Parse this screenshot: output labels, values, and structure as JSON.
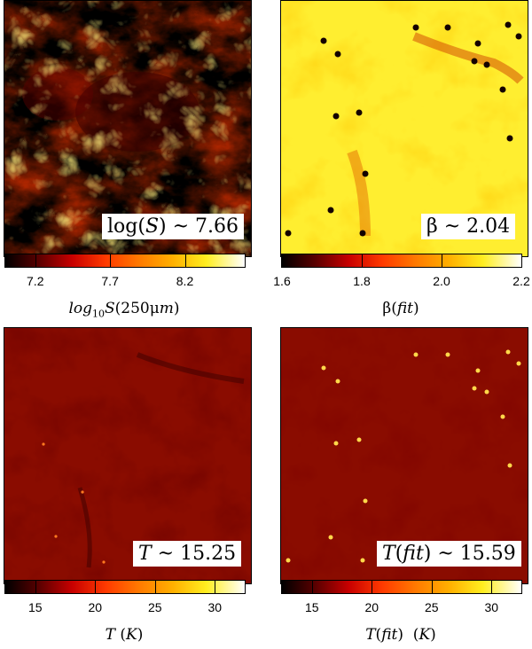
{
  "panels": {
    "top_left": {
      "annotation_text": "log(S) ~ 7.66",
      "annot_prefix": "log(",
      "annot_var": "S",
      "annot_suffix": ") ~ 7.66"
    },
    "top_right": {
      "annotation_text": "β ~ 2.04",
      "annot_var": "β",
      "annot_suffix": " ~ 2.04"
    },
    "bottom_left": {
      "annotation_text": "T ~ 15.25",
      "annot_var": "T",
      "annot_suffix": " ~ 15.25"
    },
    "bottom_right": {
      "annotation_text": "T(fit) ~ 15.59",
      "annot_var": "T",
      "annot_fit": "(fit)",
      "annot_suffix": " ~ 15.59"
    }
  },
  "colorbars": {
    "logS": {
      "ticks": [
        "7.2",
        "7.7",
        "8.2"
      ],
      "range": [
        7.0,
        8.6
      ],
      "label": "log10S(250μm)",
      "label_parts": [
        "log",
        "10",
        "S(250μm)"
      ]
    },
    "beta": {
      "ticks": [
        "1.6",
        "1.8",
        "2.0",
        "2.2"
      ],
      "range": [
        1.6,
        2.2
      ],
      "label": "β(fit)",
      "label_parts": [
        "β(",
        "fit",
        ")"
      ]
    },
    "T": {
      "ticks": [
        "15",
        "20",
        "25",
        "30"
      ],
      "range": [
        12.5,
        32.5
      ],
      "label": "T (K)",
      "label_parts": [
        "T",
        " (",
        "K",
        ")"
      ]
    },
    "Tfit": {
      "ticks": [
        "15",
        "20",
        "25",
        "30"
      ],
      "range": [
        12.5,
        32.5
      ],
      "label": "T(fit) (K)",
      "label_parts": [
        "T(",
        "fit",
        ")  (",
        "K",
        ")"
      ]
    }
  },
  "colormap": "hot",
  "colors": {
    "black": "#000000",
    "dark_red": "#7a0000",
    "red": "#e60000",
    "orange": "#ff8000",
    "yellow": "#ffff00",
    "white": "#ffffff"
  }
}
